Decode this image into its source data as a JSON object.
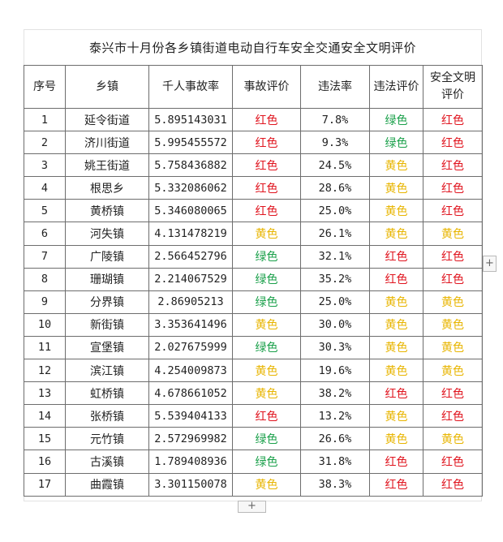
{
  "title": "泰兴市十月份各乡镇街道电动自行车安全交通安全文明评价",
  "headers": [
    "序号",
    "乡镇",
    "千人事故率",
    "事故评价",
    "违法率",
    "违法评价",
    "安全文明\n评价"
  ],
  "colors": {
    "red": "#e0141e",
    "green": "#1aa04a",
    "yellow": "#e8b500"
  },
  "rows": [
    {
      "no": "1",
      "town": "延令街道",
      "accident_rate": "5.895143031",
      "accident_eval": "红色",
      "violation_rate": "7.8%",
      "violation_eval": "绿色",
      "overall_eval": "红色"
    },
    {
      "no": "2",
      "town": "济川街道",
      "accident_rate": "5.995455572",
      "accident_eval": "红色",
      "violation_rate": "9.3%",
      "violation_eval": "绿色",
      "overall_eval": "红色"
    },
    {
      "no": "3",
      "town": "姚王街道",
      "accident_rate": "5.758436882",
      "accident_eval": "红色",
      "violation_rate": "24.5%",
      "violation_eval": "黄色",
      "overall_eval": "红色"
    },
    {
      "no": "4",
      "town": "根思乡",
      "accident_rate": "5.332086062",
      "accident_eval": "红色",
      "violation_rate": "28.6%",
      "violation_eval": "黄色",
      "overall_eval": "红色"
    },
    {
      "no": "5",
      "town": "黄桥镇",
      "accident_rate": "5.346080065",
      "accident_eval": "红色",
      "violation_rate": "25.0%",
      "violation_eval": "黄色",
      "overall_eval": "红色"
    },
    {
      "no": "6",
      "town": "河失镇",
      "accident_rate": "4.131478219",
      "accident_eval": "黄色",
      "violation_rate": "26.1%",
      "violation_eval": "黄色",
      "overall_eval": "黄色"
    },
    {
      "no": "7",
      "town": "广陵镇",
      "accident_rate": "2.566452796",
      "accident_eval": "绿色",
      "violation_rate": "32.1%",
      "violation_eval": "红色",
      "overall_eval": "红色"
    },
    {
      "no": "8",
      "town": "珊瑚镇",
      "accident_rate": "2.214067529",
      "accident_eval": "绿色",
      "violation_rate": "35.2%",
      "violation_eval": "红色",
      "overall_eval": "红色"
    },
    {
      "no": "9",
      "town": "分界镇",
      "accident_rate": "2.86905213",
      "accident_eval": "绿色",
      "violation_rate": "25.0%",
      "violation_eval": "黄色",
      "overall_eval": "黄色"
    },
    {
      "no": "10",
      "town": "新街镇",
      "accident_rate": "3.353641496",
      "accident_eval": "黄色",
      "violation_rate": "30.0%",
      "violation_eval": "黄色",
      "overall_eval": "黄色"
    },
    {
      "no": "11",
      "town": "宣堡镇",
      "accident_rate": "2.027675999",
      "accident_eval": "绿色",
      "violation_rate": "30.3%",
      "violation_eval": "黄色",
      "overall_eval": "黄色"
    },
    {
      "no": "12",
      "town": "滨江镇",
      "accident_rate": "4.254009873",
      "accident_eval": "黄色",
      "violation_rate": "19.6%",
      "violation_eval": "黄色",
      "overall_eval": "黄色"
    },
    {
      "no": "13",
      "town": "虹桥镇",
      "accident_rate": "4.678661052",
      "accident_eval": "黄色",
      "violation_rate": "38.2%",
      "violation_eval": "红色",
      "overall_eval": "红色"
    },
    {
      "no": "14",
      "town": "张桥镇",
      "accident_rate": "5.539404133",
      "accident_eval": "红色",
      "violation_rate": "13.2%",
      "violation_eval": "黄色",
      "overall_eval": "红色"
    },
    {
      "no": "15",
      "town": "元竹镇",
      "accident_rate": "2.572969982",
      "accident_eval": "绿色",
      "violation_rate": "26.6%",
      "violation_eval": "黄色",
      "overall_eval": "黄色"
    },
    {
      "no": "16",
      "town": "古溪镇",
      "accident_rate": "1.789408936",
      "accident_eval": "绿色",
      "violation_rate": "31.8%",
      "violation_eval": "红色",
      "overall_eval": "红色"
    },
    {
      "no": "17",
      "town": "曲霞镇",
      "accident_rate": "3.301150078",
      "accident_eval": "黄色",
      "violation_rate": "38.3%",
      "violation_eval": "红色",
      "overall_eval": "红色"
    }
  ],
  "buttons": {
    "add_column": "+",
    "add_row": "+"
  }
}
